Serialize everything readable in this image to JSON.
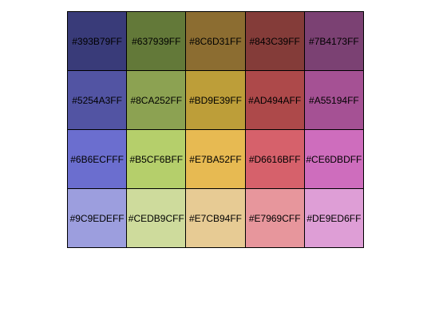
{
  "palette": {
    "rows": [
      [
        {
          "label": "#393B79FF",
          "color": "#393B79"
        },
        {
          "label": "#637939FF",
          "color": "#637939"
        },
        {
          "label": "#8C6D31FF",
          "color": "#8C6D31"
        },
        {
          "label": "#843C39FF",
          "color": "#843C39"
        },
        {
          "label": "#7B4173FF",
          "color": "#7B4173"
        }
      ],
      [
        {
          "label": "#5254A3FF",
          "color": "#5254A3"
        },
        {
          "label": "#8CA252FF",
          "color": "#8CA252"
        },
        {
          "label": "#BD9E39FF",
          "color": "#BD9E39"
        },
        {
          "label": "#AD494AFF",
          "color": "#AD494A"
        },
        {
          "label": "#A55194FF",
          "color": "#A55194"
        }
      ],
      [
        {
          "label": "#6B6ECFFF",
          "color": "#6B6ECF"
        },
        {
          "label": "#B5CF6BFF",
          "color": "#B5CF6B"
        },
        {
          "label": "#E7BA52FF",
          "color": "#E7BA52"
        },
        {
          "label": "#D6616BFF",
          "color": "#D6616B"
        },
        {
          "label": "#CE6DBDFF",
          "color": "#CE6DBD"
        }
      ],
      [
        {
          "label": "#9C9EDEFF",
          "color": "#9C9EDE"
        },
        {
          "label": "#CEDB9CFF",
          "color": "#CEDB9C"
        },
        {
          "label": "#E7CB94FF",
          "color": "#E7CB94"
        },
        {
          "label": "#E7969CFF",
          "color": "#E7969C"
        },
        {
          "label": "#DE9ED6FF",
          "color": "#DE9ED6"
        }
      ]
    ]
  }
}
